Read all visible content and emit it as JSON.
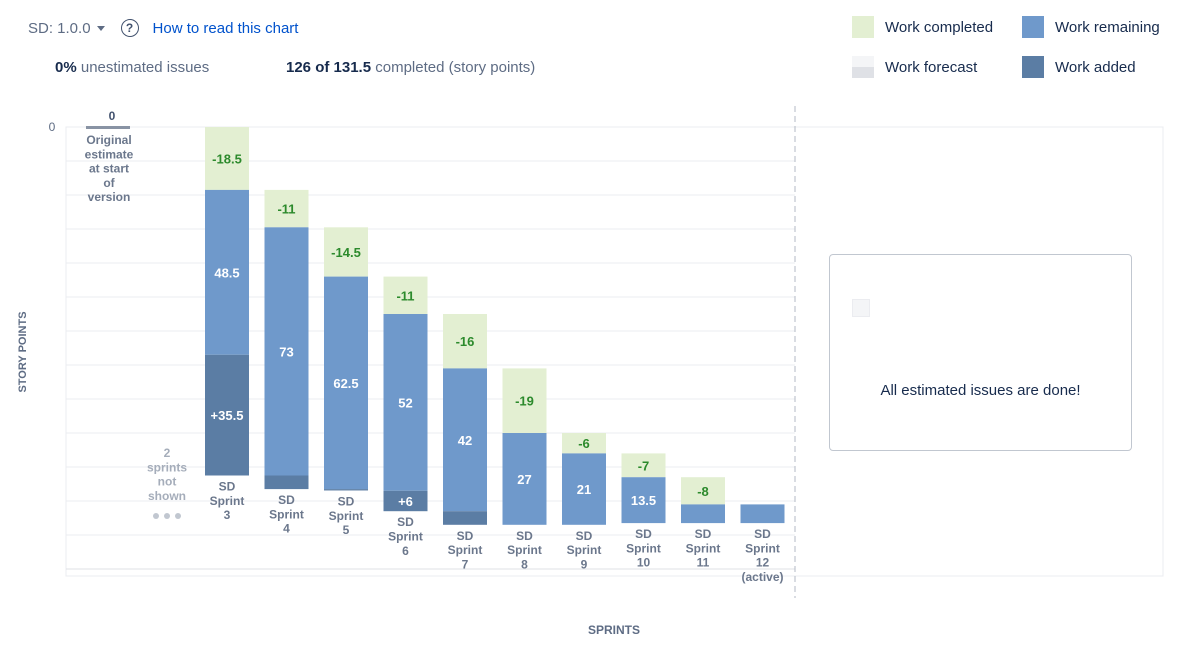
{
  "header": {
    "version_label": "SD: 1.0.0",
    "help_symbol": "?",
    "help_link": "How to read this chart"
  },
  "stats": {
    "unestimated_value": "0%",
    "unestimated_label": "unestimated issues",
    "completed_value": "126 of 131.5",
    "completed_label": "completed (story points)"
  },
  "legend": {
    "completed": "Work completed",
    "remaining": "Work remaining",
    "forecast": "Work forecast",
    "added": "Work added"
  },
  "colors": {
    "completed": "#e3efd2",
    "remaining": "#6f99cb",
    "added": "#5b7da4",
    "completed_text": "#2c8a2c",
    "axis_text": "#5e6c84",
    "grid": "#ebecf0"
  },
  "chart_data": {
    "type": "bar",
    "ylabel": "STORY POINTS",
    "xlabel": "SPRINTS",
    "y_tick": "0",
    "ylim": [
      0,
      131.5
    ],
    "grid": true,
    "original_estimate": {
      "value": "0",
      "lines": [
        "Original",
        "estimate",
        "at start",
        "of",
        "version"
      ]
    },
    "hidden_sprints": {
      "lines": [
        "2",
        "sprints",
        "not",
        "shown"
      ]
    },
    "sprints": [
      {
        "label": [
          "SD",
          "Sprint",
          "3"
        ],
        "completed": 18.5,
        "completed_label": "-18.5",
        "remaining": 48.5,
        "remaining_label": "48.5",
        "added": 35.5,
        "added_label": "+35.5"
      },
      {
        "label": [
          "SD",
          "Sprint",
          "4"
        ],
        "completed": 11,
        "completed_label": "-11",
        "remaining": 73,
        "remaining_label": "73",
        "added": 4,
        "added_label": ""
      },
      {
        "label": [
          "SD",
          "Sprint",
          "5"
        ],
        "completed": 14.5,
        "completed_label": "-14.5",
        "remaining": 62.5,
        "remaining_label": "62.5",
        "added": 0.4,
        "added_label": ""
      },
      {
        "label": [
          "SD",
          "Sprint",
          "6"
        ],
        "completed": 11,
        "completed_label": "-11",
        "remaining": 52,
        "remaining_label": "52",
        "added": 6,
        "added_label": "+6"
      },
      {
        "label": [
          "SD",
          "Sprint",
          "7"
        ],
        "completed": 16,
        "completed_label": "-16",
        "remaining": 42,
        "remaining_label": "42",
        "added": 4,
        "added_label": ""
      },
      {
        "label": [
          "SD",
          "Sprint",
          "8"
        ],
        "completed": 19,
        "completed_label": "-19",
        "remaining": 27,
        "remaining_label": "27",
        "added": 0,
        "added_label": ""
      },
      {
        "label": [
          "SD",
          "Sprint",
          "9"
        ],
        "completed": 6,
        "completed_label": "-6",
        "remaining": 21,
        "remaining_label": "21",
        "added": 0,
        "added_label": ""
      },
      {
        "label": [
          "SD",
          "Sprint",
          "10"
        ],
        "completed": 7,
        "completed_label": "-7",
        "remaining": 13.5,
        "remaining_label": "13.5",
        "added": 0,
        "added_label": ""
      },
      {
        "label": [
          "SD",
          "Sprint",
          "11"
        ],
        "completed": 8,
        "completed_label": "-8",
        "remaining": 5.5,
        "remaining_label": "",
        "added": 0,
        "added_label": ""
      },
      {
        "label": [
          "SD",
          "Sprint",
          "12",
          "(active)"
        ],
        "completed": 0,
        "completed_label": "",
        "remaining": 5.5,
        "remaining_label": "",
        "added": 0,
        "added_label": ""
      }
    ],
    "forecast_message": "All estimated issues are done!"
  }
}
